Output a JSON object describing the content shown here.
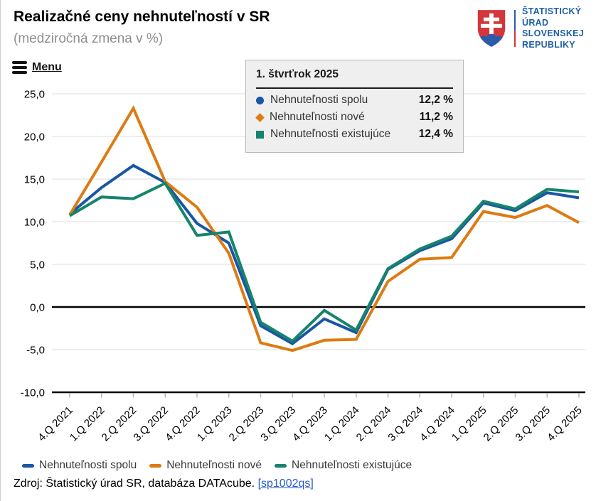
{
  "header": {
    "title": "Realizačné ceny nehnuteľností v SR",
    "subtitle": "(medziročná zmena v %)",
    "menu_label": "Menu"
  },
  "logo": {
    "lines": [
      "ŠTATISTICKÝ",
      "ÚRAD",
      "SLOVENSKEJ",
      "REPUBLIKY"
    ],
    "shield_red": "#d3373c",
    "shield_blue": "#2b5ca8",
    "text_blue": "#1f5fa6"
  },
  "tooltip": {
    "title": "1. štvrťrok 2025",
    "rows": [
      {
        "label": "Nehnuteľnosti spolu",
        "value": "12,2 %",
        "marker": "circle",
        "color": "#1a56a4"
      },
      {
        "label": "Nehnuteľnosti nové",
        "value": "11,2 %",
        "marker": "diamond",
        "color": "#dd7b12"
      },
      {
        "label": "Nehnuteľnosti existujúce",
        "value": "12,4 %",
        "marker": "square",
        "color": "#16846c"
      }
    ]
  },
  "legend": {
    "items": [
      {
        "label": "Nehnuteľnosti spolu",
        "color": "#1a56a4"
      },
      {
        "label": "Nehnuteľnosti nové",
        "color": "#dd7b12"
      },
      {
        "label": "Nehnuteľnosti existujúce",
        "color": "#16846c"
      }
    ]
  },
  "footer": {
    "source_text": "Zdroj: Štatistický úrad SR, databáza DATAcube.",
    "source_link": "[sp1002qs]"
  },
  "chart_data": {
    "type": "line",
    "title": "Realizačné ceny nehnuteľností v SR",
    "subtitle": "(medziročná zmena v %)",
    "ylabel": "medziročná zmena v %",
    "xlabel": "",
    "ylim": [
      -10,
      25
    ],
    "yticks": [
      25,
      20,
      15,
      10,
      5,
      0,
      -5,
      -10
    ],
    "grid": true,
    "legend_position": "bottom",
    "categories": [
      "4.Q 2021",
      "1.Q 2022",
      "2.Q 2022",
      "3.Q 2022",
      "4.Q 2022",
      "1.Q 2023",
      "2.Q 2023",
      "3.Q 2023",
      "4.Q 2023",
      "1.Q 2024",
      "2.Q 2024",
      "3.Q 2024",
      "4.Q 2024",
      "1.Q 2025",
      "2.Q 2025",
      "3.Q 2025",
      "4.Q 2025"
    ],
    "series": [
      {
        "id": "spolu",
        "name": "Nehnuteľnosti spolu",
        "color": "#1a56a4",
        "values": [
          10.9,
          14.0,
          16.6,
          14.6,
          9.8,
          7.5,
          -2.2,
          -4.3,
          -1.4,
          -3.0,
          4.4,
          6.6,
          8.0,
          12.2,
          11.3,
          13.4,
          12.8
        ]
      },
      {
        "id": "nove",
        "name": "Nehnuteľnosti nové",
        "color": "#dd7b12",
        "values": [
          10.8,
          17.0,
          23.3,
          14.7,
          11.7,
          6.3,
          -4.2,
          -5.1,
          -3.9,
          -3.8,
          3.0,
          5.6,
          5.8,
          11.2,
          10.5,
          11.9,
          9.9
        ]
      },
      {
        "id": "existujuce",
        "name": "Nehnuteľnosti existujúce",
        "color": "#16846c",
        "values": [
          10.7,
          12.9,
          12.7,
          14.5,
          8.4,
          8.8,
          -1.8,
          -4.0,
          -0.4,
          -2.7,
          4.5,
          6.8,
          8.3,
          12.4,
          11.5,
          13.8,
          13.5
        ]
      }
    ]
  }
}
